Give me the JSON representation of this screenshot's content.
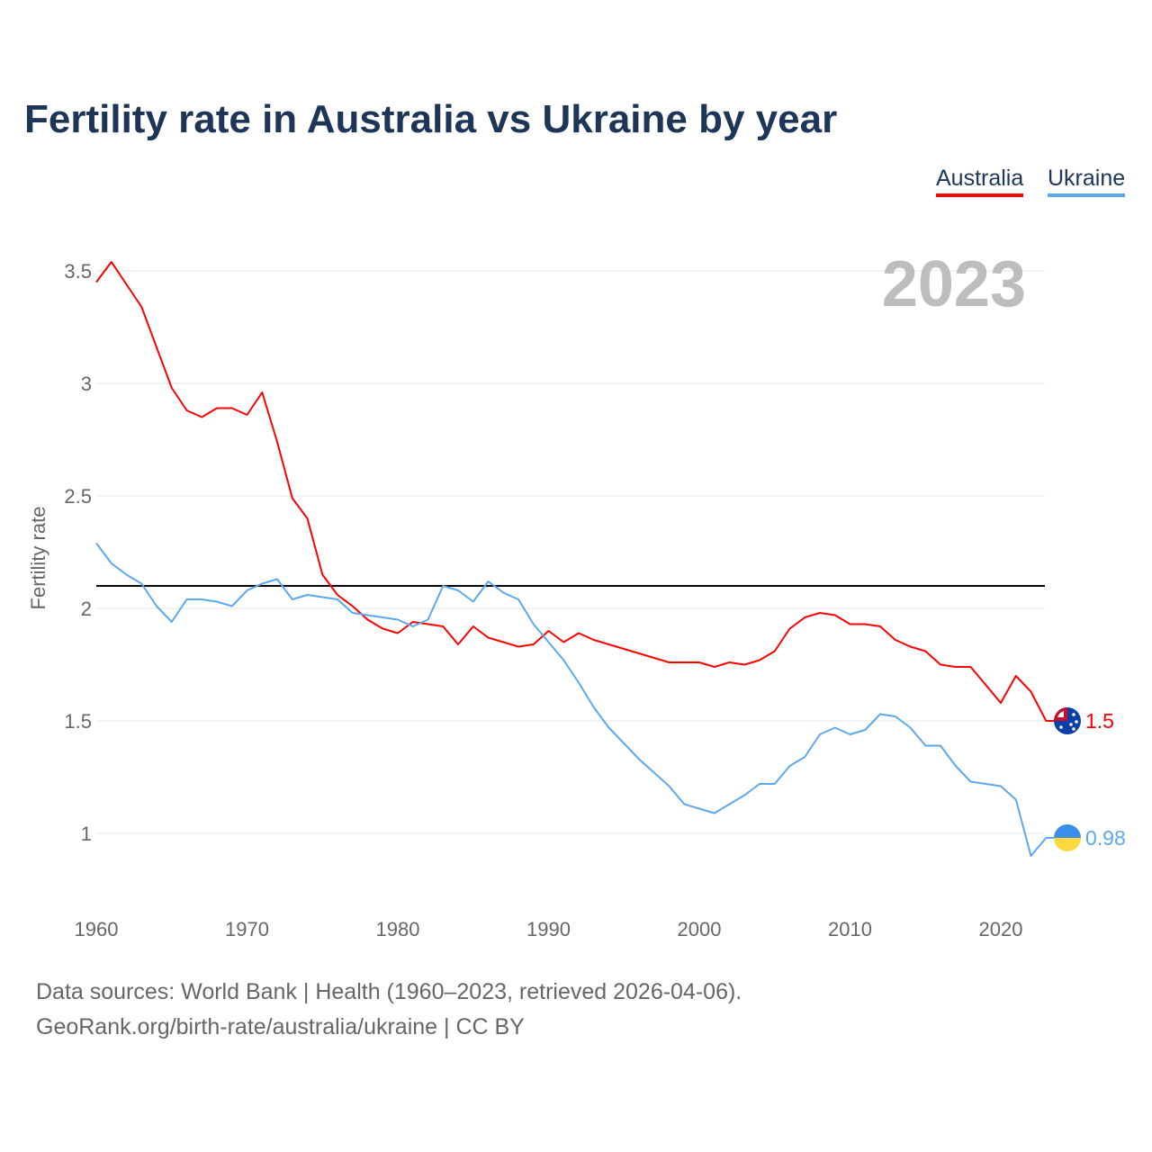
{
  "chart_data": {
    "type": "line",
    "title": "Fertility rate in Australia vs Ukraine by year",
    "xlabel": "",
    "ylabel": "Fertility rate",
    "xlim": [
      1960,
      2023
    ],
    "ylim": [
      0.8,
      3.6
    ],
    "x_ticks": [
      1960,
      1970,
      1980,
      1990,
      2000,
      2010,
      2020
    ],
    "y_ticks": [
      1,
      1.5,
      2,
      2.5,
      3,
      3.5
    ],
    "y_tick_labels": [
      "1",
      "1.5",
      "2",
      "2.5",
      "3",
      "3.5"
    ],
    "grid": true,
    "legend_position": "top-right",
    "year_watermark": "2023",
    "reference_line": 2.1,
    "x": [
      1960,
      1961,
      1962,
      1963,
      1964,
      1965,
      1966,
      1967,
      1968,
      1969,
      1970,
      1971,
      1972,
      1973,
      1974,
      1975,
      1976,
      1977,
      1978,
      1979,
      1980,
      1981,
      1982,
      1983,
      1984,
      1985,
      1986,
      1987,
      1988,
      1989,
      1990,
      1991,
      1992,
      1993,
      1994,
      1995,
      1996,
      1997,
      1998,
      1999,
      2000,
      2001,
      2002,
      2003,
      2004,
      2005,
      2006,
      2007,
      2008,
      2009,
      2010,
      2011,
      2012,
      2013,
      2014,
      2015,
      2016,
      2017,
      2018,
      2019,
      2020,
      2021,
      2022,
      2023
    ],
    "series": [
      {
        "name": "Australia",
        "color": "#ff0000",
        "end_label": "1.5",
        "flag": "australia-flag",
        "values": [
          3.45,
          3.54,
          3.44,
          3.34,
          3.16,
          2.98,
          2.88,
          2.85,
          2.89,
          2.89,
          2.86,
          2.96,
          2.74,
          2.49,
          2.4,
          2.15,
          2.06,
          2.01,
          1.95,
          1.91,
          1.89,
          1.94,
          1.93,
          1.92,
          1.84,
          1.92,
          1.87,
          1.85,
          1.83,
          1.84,
          1.9,
          1.85,
          1.89,
          1.86,
          1.84,
          1.82,
          1.8,
          1.78,
          1.76,
          1.76,
          1.76,
          1.74,
          1.76,
          1.75,
          1.77,
          1.81,
          1.91,
          1.96,
          1.98,
          1.97,
          1.93,
          1.93,
          1.92,
          1.86,
          1.83,
          1.81,
          1.75,
          1.74,
          1.74,
          1.66,
          1.58,
          1.7,
          1.63,
          1.5
        ]
      },
      {
        "name": "Ukraine",
        "color": "#5ca8ef",
        "end_label": "0.98",
        "flag": "ukraine-flag",
        "values": [
          2.29,
          2.2,
          2.15,
          2.11,
          2.01,
          1.94,
          2.04,
          2.04,
          2.03,
          2.01,
          2.08,
          2.11,
          2.13,
          2.04,
          2.06,
          2.05,
          2.04,
          1.98,
          1.97,
          1.96,
          1.95,
          1.92,
          1.95,
          2.1,
          2.08,
          2.03,
          2.12,
          2.07,
          2.04,
          1.93,
          1.85,
          1.77,
          1.67,
          1.56,
          1.47,
          1.4,
          1.33,
          1.27,
          1.21,
          1.13,
          1.11,
          1.09,
          1.13,
          1.17,
          1.22,
          1.22,
          1.3,
          1.34,
          1.44,
          1.47,
          1.44,
          1.46,
          1.53,
          1.52,
          1.47,
          1.39,
          1.39,
          1.3,
          1.23,
          1.22,
          1.21,
          1.15,
          0.9,
          0.98
        ]
      }
    ]
  },
  "footer": {
    "line1": "Data sources: World Bank | Health (1960–2023, retrieved 2026-04-06).",
    "line2": "GeoRank.org/birth-rate/australia/ukraine | CC BY"
  }
}
